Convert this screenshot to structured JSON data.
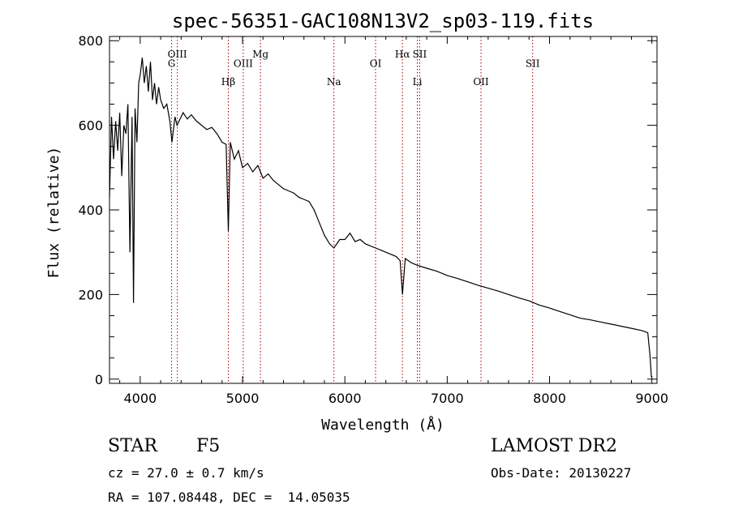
{
  "chart_data": {
    "type": "line",
    "title": "spec-56351-GAC108N13V2_sp03-119.fits",
    "xlabel": "Wavelength (Å)",
    "ylabel": "Flux (relative)",
    "xlim": [
      3700,
      9050
    ],
    "ylim": [
      -10,
      810
    ],
    "xticks": [
      4000,
      5000,
      6000,
      7000,
      8000,
      9000
    ],
    "yticks": [
      0,
      200,
      400,
      600,
      800
    ],
    "grid": false,
    "series": [
      {
        "color": "#000000",
        "x": [
          3700,
          3720,
          3740,
          3760,
          3780,
          3800,
          3820,
          3840,
          3860,
          3880,
          3900,
          3920,
          3935,
          3950,
          3968,
          3985,
          4000,
          4020,
          4040,
          4060,
          4080,
          4100,
          4120,
          4140,
          4160,
          4180,
          4200,
          4230,
          4260,
          4290,
          4310,
          4340,
          4360,
          4380,
          4420,
          4460,
          4500,
          4550,
          4600,
          4650,
          4700,
          4750,
          4800,
          4840,
          4861,
          4880,
          4920,
          4960,
          5000,
          5050,
          5100,
          5150,
          5200,
          5250,
          5300,
          5350,
          5400,
          5450,
          5500,
          5550,
          5600,
          5650,
          5700,
          5750,
          5800,
          5850,
          5893,
          5950,
          6000,
          6050,
          6100,
          6150,
          6200,
          6250,
          6300,
          6350,
          6400,
          6450,
          6500,
          6540,
          6563,
          6590,
          6650,
          6700,
          6800,
          6900,
          7000,
          7100,
          7200,
          7300,
          7400,
          7500,
          7600,
          7700,
          7800,
          7900,
          8000,
          8100,
          8200,
          8300,
          8400,
          8500,
          8600,
          8700,
          8800,
          8900,
          8960,
          8980,
          8995
        ],
        "y": [
          430,
          620,
          520,
          610,
          540,
          630,
          480,
          600,
          580,
          650,
          300,
          620,
          180,
          640,
          560,
          700,
          720,
          760,
          700,
          740,
          680,
          750,
          660,
          700,
          650,
          690,
          660,
          640,
          650,
          610,
          560,
          620,
          600,
          610,
          630,
          615,
          625,
          610,
          600,
          590,
          595,
          580,
          560,
          555,
          350,
          560,
          520,
          540,
          500,
          510,
          490,
          505,
          475,
          485,
          470,
          460,
          450,
          445,
          440,
          430,
          425,
          420,
          400,
          370,
          340,
          320,
          310,
          330,
          330,
          345,
          325,
          330,
          320,
          315,
          310,
          305,
          300,
          295,
          290,
          280,
          200,
          285,
          275,
          270,
          262,
          255,
          245,
          238,
          230,
          222,
          215,
          208,
          200,
          192,
          185,
          175,
          168,
          160,
          152,
          144,
          140,
          135,
          130,
          125,
          120,
          115,
          110,
          60,
          5
        ]
      }
    ],
    "lines": [
      {
        "wavelength": 4307,
        "label": "G",
        "label_y": 738
      },
      {
        "wavelength": 4363,
        "label": "OIII",
        "label_y": 760
      },
      {
        "wavelength": 4861,
        "label": "Hβ",
        "label_y": 695
      },
      {
        "wavelength": 5007,
        "label": "OIII",
        "label_y": 738
      },
      {
        "wavelength": 5175,
        "label": "Mg",
        "label_y": 760
      },
      {
        "wavelength": 5893,
        "label": "Na",
        "label_y": 695
      },
      {
        "wavelength": 6300,
        "label": "OI",
        "label_y": 738
      },
      {
        "wavelength": 6563,
        "label": "Hα",
        "label_y": 760
      },
      {
        "wavelength": 6708,
        "label": "Li",
        "label_y": 695
      },
      {
        "wavelength": 6731,
        "label": "SII",
        "label_y": 760
      },
      {
        "wavelength": 7330,
        "label": "OII",
        "label_y": 695
      },
      {
        "wavelength": 7835,
        "label": "SII",
        "label_y": 738
      }
    ],
    "line_color": "#a00000"
  },
  "info": {
    "object_class": "STAR",
    "subclass": "F5",
    "survey": "LAMOST DR2",
    "cz": "cz = 27.0 ± 0.7 km/s",
    "obs_date": "Obs-Date: 20130227",
    "coords": "RA = 107.08448, DEC =  14.05035"
  }
}
